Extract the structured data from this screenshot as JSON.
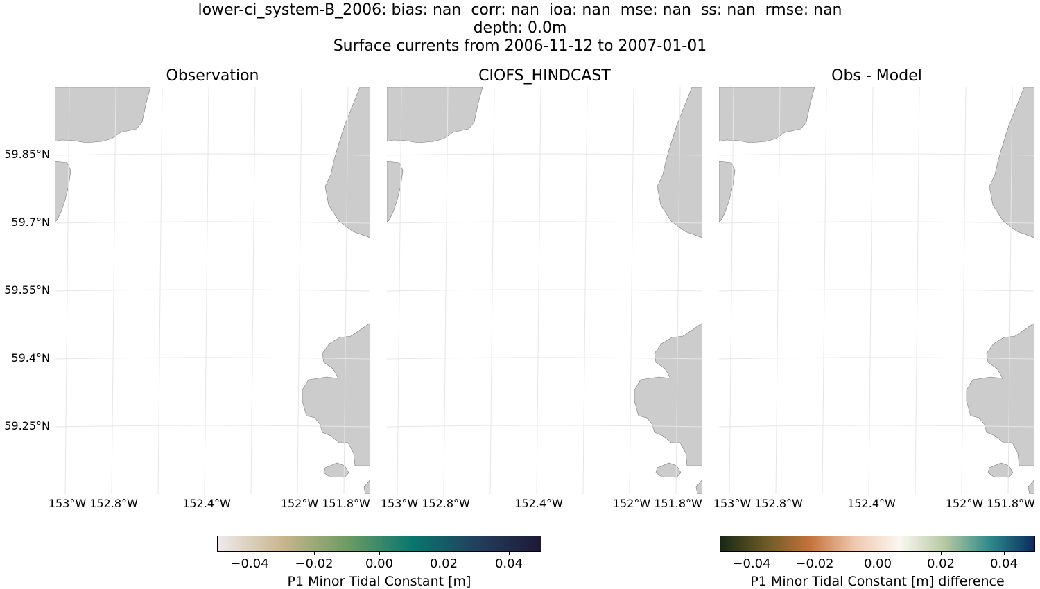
{
  "title": {
    "line1": "lower-ci_system-B_2006: bias: nan  corr: nan  ioa: nan  mse: nan  ss: nan  rmse: nan",
    "line2": "depth: 0.0m",
    "line3": "Surface currents from 2006-11-12 to 2007-01-01"
  },
  "panels": [
    {
      "title": "Observation"
    },
    {
      "title": "CIOFS_HINDCAST"
    },
    {
      "title": "Obs - Model"
    }
  ],
  "map": {
    "land_color": "#cccccc",
    "grid_color": "#e6e6e6",
    "lat_labels": [
      "59.85°N",
      "59.7°N",
      "59.55°N",
      "59.4°N",
      "59.25°N"
    ],
    "lon_labels": [
      "153°W",
      "152.8°W",
      "152.4°W",
      "152°W",
      "151.8°W"
    ]
  },
  "colorbars": [
    {
      "label": "P1 Minor Tidal Constant [m]",
      "ticks": [
        "−0.04",
        "−0.02",
        "0.00",
        "0.02",
        "0.04"
      ],
      "range": [
        -0.05,
        0.05
      ],
      "colormap": "cmocean-rain",
      "stops": [
        "#eeeaec",
        "#c9b68d",
        "#6f9b63",
        "#08776f",
        "#233f5e",
        "#1d1935"
      ]
    },
    {
      "label": "P1 Minor Tidal Constant [m] difference",
      "ticks": [
        "−0.04",
        "−0.02",
        "0.00",
        "0.02",
        "0.04"
      ],
      "range": [
        -0.05,
        0.05
      ],
      "colormap": "cmocean-tarn",
      "stops": [
        "#172815",
        "#6a5a26",
        "#c4733a",
        "#f0c8b0",
        "#fbf7f0",
        "#b6c9a3",
        "#2f8a8c",
        "#0b2b5c"
      ]
    }
  ]
}
